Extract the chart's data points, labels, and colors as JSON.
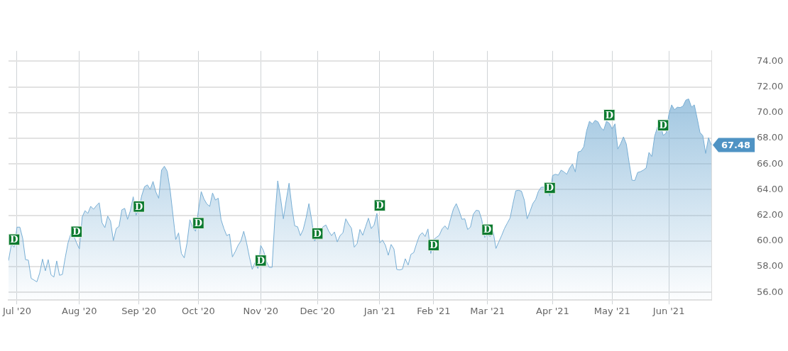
{
  "chart_data": {
    "type": "area",
    "categories": [
      null,
      null,
      null,
      "Jul '20",
      null,
      null,
      null,
      null,
      null,
      null,
      null,
      null,
      null,
      null,
      null,
      null,
      null,
      null,
      null,
      null,
      null,
      null,
      null,
      null,
      null,
      "Aug '20",
      null,
      null,
      null,
      null,
      null,
      null,
      null,
      null,
      null,
      null,
      null,
      null,
      null,
      null,
      null,
      null,
      null,
      null,
      null,
      null,
      "Sep '20",
      null,
      null,
      null,
      null,
      null,
      null,
      null,
      null,
      null,
      null,
      null,
      null,
      null,
      null,
      null,
      null,
      null,
      null,
      null,
      null,
      "Oct '20",
      null,
      null,
      null,
      null,
      null,
      null,
      null,
      null,
      null,
      null,
      null,
      null,
      null,
      null,
      null,
      null,
      null,
      null,
      null,
      null,
      null,
      "Nov '20",
      null,
      null,
      null,
      null,
      null,
      null,
      null,
      null,
      null,
      null,
      null,
      null,
      null,
      null,
      null,
      null,
      null,
      null,
      null,
      "Dec '20",
      null,
      null,
      null,
      null,
      null,
      null,
      null,
      null,
      null,
      null,
      null,
      null,
      null,
      null,
      null,
      null,
      null,
      null,
      null,
      null,
      null,
      "Jan '21",
      null,
      null,
      null,
      null,
      null,
      null,
      null,
      null,
      null,
      null,
      null,
      null,
      null,
      null,
      null,
      null,
      null,
      null,
      "Feb '21",
      null,
      null,
      null,
      null,
      null,
      null,
      null,
      null,
      null,
      null,
      null,
      null,
      null,
      null,
      null,
      null,
      null,
      null,
      "Mar '21",
      null,
      null,
      null,
      null,
      null,
      null,
      null,
      null,
      null,
      null,
      null,
      null,
      null,
      null,
      null,
      null,
      null,
      null,
      null,
      null,
      null,
      null,
      "Apr '21",
      null,
      null,
      null,
      null,
      null,
      null,
      null,
      null,
      null,
      null,
      null,
      null,
      null,
      null,
      null,
      null,
      null,
      null,
      null,
      null,
      "May '21",
      null,
      null,
      null,
      null,
      null,
      null,
      null,
      null,
      null,
      null,
      null,
      null,
      null,
      null,
      null,
      null,
      null,
      null,
      null,
      "Jun '21",
      null,
      null,
      null,
      null,
      null,
      null,
      null,
      null,
      null,
      null,
      null,
      null,
      null,
      null,
      null
    ],
    "series": [
      {
        "color": "#78aed4",
        "marker": "none",
        "values": [
          58.48,
          59.73,
          59.52,
          61.08,
          61.08,
          60.21,
          58.55,
          58.51,
          57.09,
          56.96,
          56.82,
          57.51,
          58.59,
          57.68,
          58.55,
          57.37,
          57.19,
          58.45,
          57.33,
          57.4,
          58.69,
          59.86,
          60.56,
          60.42,
          59.86,
          59.38,
          61.87,
          62.36,
          62.15,
          62.7,
          62.47,
          62.75,
          62.98,
          61.42,
          61.04,
          61.94,
          61.55,
          60.03,
          60.97,
          61.14,
          62.43,
          62.54,
          61.69,
          62.36,
          63.44,
          62.01,
          62.5,
          63.53,
          64.23,
          64.37,
          64.02,
          64.64,
          63.81,
          63.33,
          65.52,
          65.82,
          65.43,
          64.02,
          62.08,
          60.11,
          60.63,
          59.03,
          58.69,
          59.86,
          61.66,
          61.04,
          60.76,
          62.36,
          63.85,
          63.26,
          62.88,
          62.7,
          63.74,
          63.19,
          63.33,
          61.66,
          60.97,
          60.42,
          60.53,
          58.76,
          59.17,
          59.66,
          60.0,
          60.76,
          59.86,
          58.76,
          57.79,
          58.34,
          57.86,
          59.66,
          59.24,
          58.41,
          57.95,
          57.95,
          61.8,
          64.68,
          63.33,
          61.73,
          63.19,
          64.5,
          62.63,
          61.18,
          61.11,
          60.42,
          60.9,
          61.8,
          62.91,
          61.6,
          60.0,
          60.35,
          60.83,
          61.11,
          61.25,
          60.76,
          60.42,
          60.7,
          59.93,
          60.42,
          60.63,
          61.73,
          61.32,
          61.0,
          59.52,
          59.8,
          60.9,
          60.45,
          61.11,
          61.78,
          60.97,
          61.25,
          62.15,
          59.86,
          60.07,
          59.66,
          58.89,
          59.73,
          59.38,
          57.79,
          57.75,
          57.81,
          58.62,
          58.13,
          58.96,
          59.1,
          59.8,
          60.42,
          60.65,
          60.35,
          60.94,
          59.03,
          60.11,
          60.28,
          60.45,
          60.94,
          61.18,
          60.9,
          61.73,
          62.5,
          62.91,
          62.36,
          61.69,
          61.73,
          60.9,
          61.08,
          62.08,
          62.39,
          62.36,
          61.66,
          60.28,
          60.49,
          60.35,
          60.76,
          59.42,
          59.93,
          60.42,
          60.97,
          61.39,
          61.8,
          62.91,
          63.91,
          63.95,
          63.88,
          63.19,
          61.73,
          62.29,
          62.91,
          63.23,
          63.88,
          64.19,
          64.19,
          64.09,
          63.51,
          65.1,
          65.2,
          65.13,
          65.52,
          65.38,
          65.2,
          65.68,
          65.99,
          65.38,
          66.93,
          67.0,
          67.34,
          68.59,
          69.32,
          69.12,
          69.39,
          69.28,
          68.83,
          68.62,
          69.32,
          69.17,
          68.73,
          69.12,
          67.16,
          67.58,
          68.11,
          67.55,
          66.1,
          64.74,
          64.71,
          65.34,
          65.4,
          65.52,
          65.68,
          66.9,
          66.58,
          68.17,
          68.87,
          69.12,
          68.23,
          68.38,
          69.84,
          70.6,
          70.22,
          70.42,
          70.39,
          70.5,
          70.97,
          71.06,
          70.42,
          70.6,
          69.56,
          68.45,
          68.2,
          66.82,
          68.04,
          67.48
        ],
        "value_labels": [
          null,
          null,
          null,
          null,
          null,
          null,
          null,
          null,
          null,
          null,
          null,
          null,
          null,
          null,
          null,
          null,
          null,
          null,
          null,
          null,
          null,
          null,
          null,
          null,
          null,
          null,
          null,
          null,
          null,
          null,
          null,
          null,
          null,
          null,
          null,
          null,
          null,
          null,
          null,
          null,
          null,
          null,
          null,
          null,
          null,
          null,
          null,
          null,
          null,
          null,
          null,
          null,
          null,
          null,
          null,
          null,
          null,
          null,
          null,
          null,
          null,
          null,
          null,
          null,
          null,
          null,
          null,
          null,
          null,
          null,
          null,
          null,
          null,
          null,
          null,
          null,
          null,
          null,
          null,
          null,
          null,
          null,
          null,
          null,
          null,
          null,
          null,
          null,
          null,
          null,
          null,
          null,
          null,
          null,
          null,
          null,
          null,
          null,
          null,
          null,
          null,
          null,
          null,
          null,
          null,
          null,
          null,
          null,
          null,
          null,
          null,
          null,
          null,
          null,
          null,
          null,
          null,
          null,
          null,
          null,
          null,
          null,
          null,
          null,
          null,
          null,
          null,
          null,
          null,
          null,
          null,
          null,
          null,
          null,
          null,
          null,
          null,
          null,
          null,
          null,
          null,
          null,
          null,
          null,
          null,
          null,
          null,
          null,
          null,
          null,
          null,
          null,
          null,
          null,
          null,
          null,
          null,
          null,
          null,
          null,
          null,
          null,
          null,
          null,
          null,
          null,
          null,
          null,
          null,
          null,
          null,
          null,
          null,
          null,
          null,
          null,
          null,
          null,
          null,
          null,
          null,
          null,
          null,
          null,
          null,
          null,
          null,
          null,
          null,
          null,
          null,
          null,
          null,
          null,
          null,
          null,
          null,
          null,
          null,
          null,
          null,
          null,
          null,
          null,
          null,
          null,
          null,
          null,
          null,
          null,
          null,
          null,
          null,
          null,
          null,
          null,
          null,
          null,
          null,
          null,
          null,
          null,
          null,
          null,
          null,
          null,
          null,
          null,
          null,
          null,
          null,
          null,
          null,
          null,
          null,
          null,
          null,
          null,
          null,
          null,
          null,
          null,
          null,
          null,
          null,
          null,
          null,
          null,
          "67.48"
        ]
      },
      {
        "type": "scatter",
        "name": "D",
        "color": "#0b7a2f",
        "marker": "square",
        "values": [
          null,
          null,
          60.11,
          null,
          null,
          null,
          null,
          null,
          null,
          null,
          null,
          null,
          null,
          null,
          null,
          null,
          null,
          null,
          null,
          null,
          null,
          null,
          null,
          null,
          60.72,
          null,
          null,
          null,
          null,
          null,
          null,
          null,
          null,
          null,
          null,
          null,
          null,
          null,
          null,
          null,
          null,
          null,
          null,
          null,
          null,
          null,
          62.68,
          null,
          null,
          null,
          null,
          null,
          null,
          null,
          null,
          null,
          null,
          null,
          null,
          null,
          null,
          null,
          null,
          null,
          null,
          null,
          null,
          61.39,
          null,
          null,
          null,
          null,
          null,
          null,
          null,
          null,
          null,
          null,
          null,
          null,
          null,
          null,
          null,
          null,
          null,
          null,
          null,
          null,
          null,
          58.48,
          null,
          null,
          null,
          null,
          null,
          null,
          null,
          null,
          null,
          null,
          null,
          null,
          null,
          null,
          null,
          null,
          null,
          null,
          null,
          60.58,
          null,
          null,
          null,
          null,
          null,
          null,
          null,
          null,
          null,
          null,
          null,
          null,
          null,
          null,
          null,
          null,
          null,
          null,
          null,
          null,
          null,
          62.77,
          null,
          null,
          null,
          null,
          null,
          null,
          null,
          null,
          null,
          null,
          null,
          null,
          null,
          null,
          null,
          null,
          null,
          null,
          59.68,
          null,
          null,
          null,
          null,
          null,
          null,
          null,
          null,
          null,
          null,
          null,
          null,
          null,
          null,
          null,
          null,
          null,
          null,
          60.88,
          null,
          null,
          null,
          null,
          null,
          null,
          null,
          null,
          null,
          null,
          null,
          null,
          null,
          null,
          null,
          null,
          null,
          null,
          null,
          null,
          null,
          64.13,
          null,
          null,
          null,
          null,
          null,
          null,
          null,
          null,
          null,
          null,
          null,
          null,
          null,
          null,
          null,
          null,
          null,
          null,
          null,
          null,
          69.81,
          null,
          null,
          null,
          null,
          null,
          null,
          null,
          null,
          null,
          null,
          null,
          null,
          null,
          null,
          null,
          null,
          null,
          null,
          69.01,
          null,
          null,
          null,
          null,
          null,
          null,
          null,
          null,
          null,
          null,
          null,
          null,
          null,
          null,
          null,
          null,
          null
        ]
      }
    ],
    "ylim": [
      55.4,
      74.8
    ],
    "yticks": [
      {
        "value": 56,
        "label": "56.00"
      },
      {
        "value": 58,
        "label": "58.00"
      },
      {
        "value": 60,
        "label": "60.00"
      },
      {
        "value": 62,
        "label": "62.00"
      },
      {
        "value": 64,
        "label": "64.00"
      },
      {
        "value": 66,
        "label": "66.00"
      },
      {
        "value": 68,
        "label": "68.00"
      },
      {
        "value": 70,
        "label": "70.00"
      },
      {
        "value": 72,
        "label": "72.00"
      },
      {
        "value": 74,
        "label": "74.00"
      }
    ],
    "grid": true
  }
}
